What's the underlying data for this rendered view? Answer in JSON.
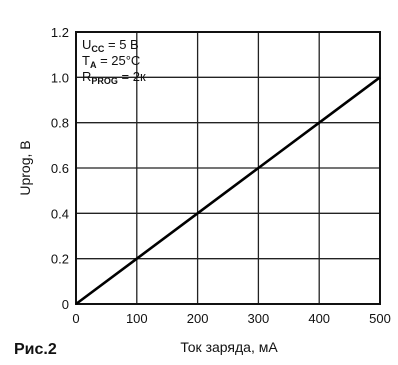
{
  "figure_label": "Рис.2",
  "conditions": [
    {
      "main": "U",
      "sub": "CC",
      "rest": " = 5 В"
    },
    {
      "main": "T",
      "sub": "A",
      "rest": " = 25°C"
    },
    {
      "main": "R",
      "sub": "PROG",
      "rest": " = 2к"
    }
  ],
  "chart_data": {
    "type": "line",
    "xlabel": "Ток заряда, мА",
    "ylabel": "Uprog, B",
    "xlim": [
      0,
      500
    ],
    "ylim": [
      0,
      1.2
    ],
    "xticks": [
      "0",
      "100",
      "200",
      "300",
      "400",
      "500"
    ],
    "yticks": [
      "0",
      "0.2",
      "0.4",
      "0.6",
      "0.8",
      "1.0",
      "1.2"
    ],
    "grid": true,
    "series": [
      {
        "x": [
          0,
          100,
          200,
          300,
          400,
          500
        ],
        "y": [
          0,
          0.2,
          0.4,
          0.6,
          0.8,
          1.0
        ]
      }
    ]
  }
}
